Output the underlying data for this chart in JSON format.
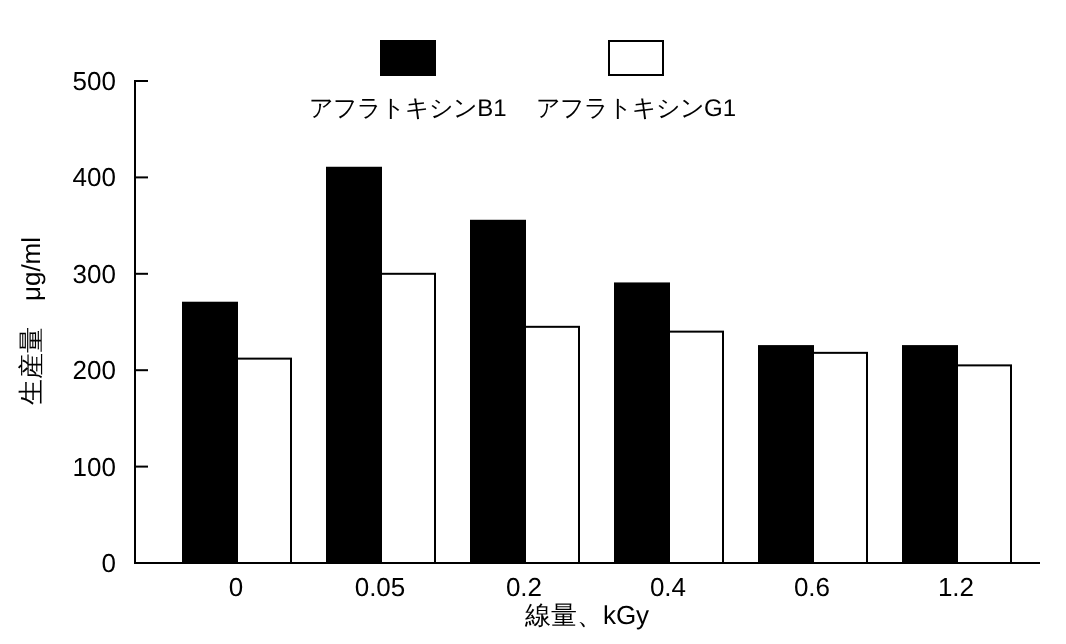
{
  "chart_data": {
    "type": "bar",
    "xlabel": "線量、kGy",
    "ylabel": "生産量　μg/ml",
    "categories": [
      "0",
      "0.05",
      "0.2",
      "0.4",
      "0.6",
      "1.2"
    ],
    "series": [
      {
        "name": "アフラトキシンB1",
        "color": "#000000",
        "values": [
          270,
          410,
          355,
          290,
          225,
          225
        ]
      },
      {
        "name": "アフラトキシンG1",
        "color": "#ffffff",
        "values": [
          212,
          300,
          245,
          240,
          218,
          205
        ]
      }
    ],
    "ylim": [
      0,
      500
    ],
    "yticks": [
      0,
      100,
      200,
      300,
      400,
      500
    ],
    "grid": false,
    "legend": "top"
  }
}
